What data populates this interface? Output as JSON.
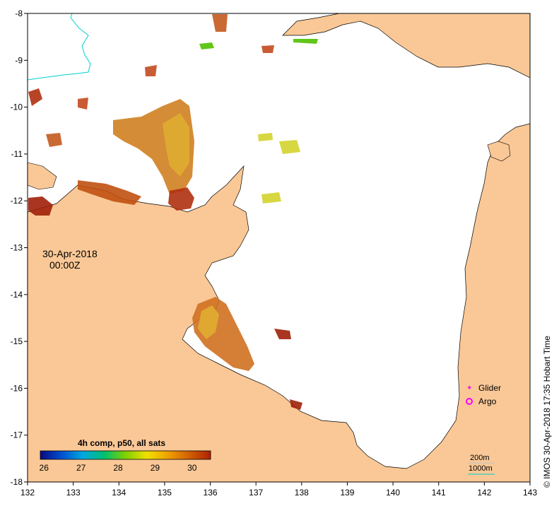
{
  "map": {
    "date_label": "30-Apr-2018",
    "time_label": "00:00Z",
    "x_axis": {
      "min": 132,
      "max": 143,
      "ticks": [
        "132",
        "133",
        "134",
        "135",
        "136",
        "137",
        "138",
        "139",
        "140",
        "141",
        "142",
        "143"
      ]
    },
    "y_axis": {
      "min": -18,
      "max": -8,
      "ticks": [
        "-8",
        "-9",
        "-10",
        "-11",
        "-12",
        "-13",
        "-14",
        "-15",
        "-16",
        "-17",
        "-18"
      ]
    },
    "colorbar": {
      "title": "4h comp, p50, all sats",
      "labels": [
        "26",
        "27",
        "28",
        "29",
        "30"
      ],
      "min": 25.9,
      "max": 30.5,
      "colors": [
        "#0a0a80",
        "#0050d0",
        "#00a8e0",
        "#00c070",
        "#80d000",
        "#f0e000",
        "#f0a000",
        "#d06000",
        "#b02000"
      ]
    },
    "legend": {
      "glider_label": "Glider",
      "argo_label": "Argo",
      "glider_color": "#ff00ff",
      "argo_color": "#ff00ff"
    },
    "bathymetry_legend": {
      "label_200": "200m",
      "label_1000": "1000m",
      "color_200": "#c0c0c0",
      "color_1000": "#00d0d0"
    },
    "land_color": "#fac896",
    "sea_color": "#ffffff",
    "credit": "© IMOS 30-Apr-2018 17:35 Hobart Time"
  }
}
